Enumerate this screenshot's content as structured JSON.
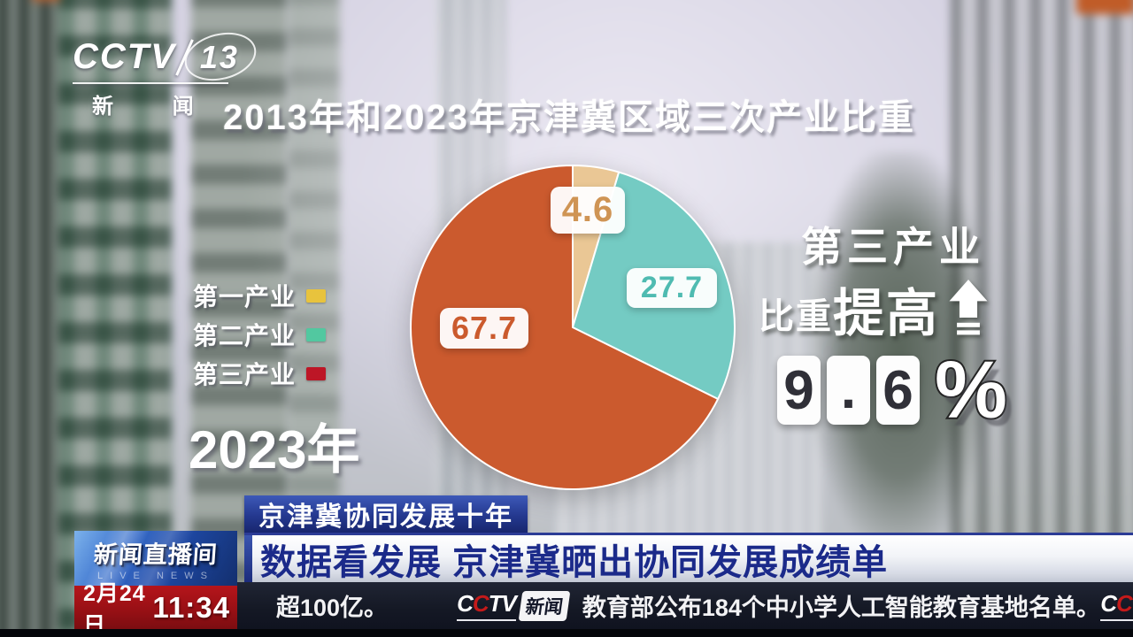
{
  "channel": {
    "logo_main": "CCTV",
    "logo_channel": "13",
    "logo_sub": "新 闻"
  },
  "chart_data": {
    "type": "pie",
    "title": "2013年和2023年京津冀区域三次产业比重",
    "year_label": "2023年",
    "legend_position": "left",
    "slices": [
      {
        "label": "第一产业",
        "value": 4.6,
        "color": "#eac795",
        "legend_color": "#e8c33d",
        "label_color": "#cf9454"
      },
      {
        "label": "第二产业",
        "value": 27.7,
        "color": "#74cbc3",
        "legend_color": "#52c8a0",
        "label_color": "#4fbbb1"
      },
      {
        "label": "第三产业",
        "value": 67.7,
        "color": "#cb5a2e",
        "legend_color": "#bd1626",
        "label_color": "#cb5a2d"
      }
    ],
    "annotation": {
      "line1": "第三产业",
      "line2_small": "比重",
      "line2_big": "提高",
      "digits": [
        "9",
        ".",
        "6"
      ],
      "unit": "%"
    }
  },
  "banner": {
    "tag": "京津冀协同发展十年",
    "headline": "数据看发展 京津冀晒出协同发展成绩单"
  },
  "footer": {
    "program_logo": {
      "title": "新闻直播间",
      "subtitle": "LIVE NEWS"
    },
    "date": "2月24日",
    "time": "11:34",
    "ticker": {
      "item1": "超100亿。",
      "logo_c1": "C",
      "logo_c2": "C",
      "logo_rest": "TV",
      "logo_news": "新闻",
      "item2": "教育部公布184个中小学人工智能教育基地名单。"
    }
  }
}
